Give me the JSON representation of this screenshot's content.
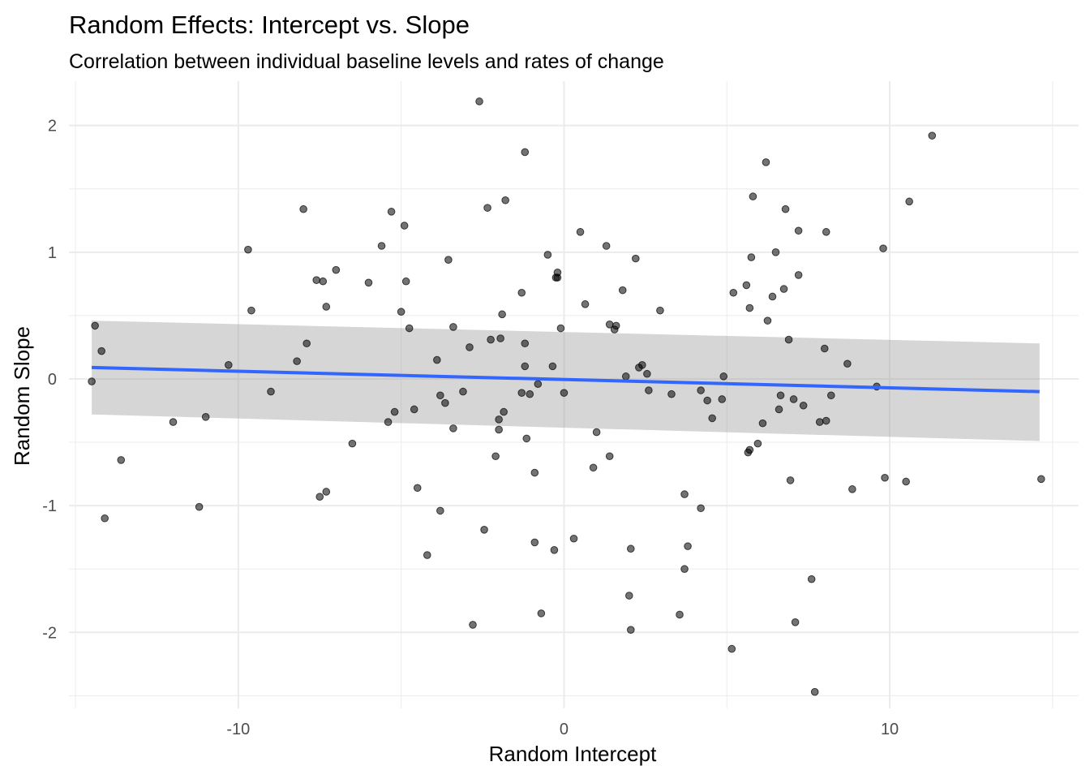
{
  "chart_data": {
    "type": "scatter",
    "title": "Random Effects: Intercept vs. Slope",
    "subtitle": "Correlation between individual baseline levels and rates of change",
    "xlabel": "Random Intercept",
    "ylabel": "Random Slope",
    "xlim": [
      -15.2,
      15.8
    ],
    "ylim": [
      -2.6,
      2.35
    ],
    "x_ticks": [
      -10,
      0,
      10
    ],
    "x_tick_labels": [
      "-10",
      "0",
      "10"
    ],
    "y_ticks": [
      -2,
      -1,
      0,
      1,
      2
    ],
    "y_tick_labels": [
      "-2",
      "-1",
      "0",
      "1",
      "2"
    ],
    "grid": true,
    "points": [
      [
        -14.4,
        0.42
      ],
      [
        -14.2,
        0.22
      ],
      [
        -14.5,
        -0.02
      ],
      [
        -13.6,
        -0.64
      ],
      [
        -14.1,
        -1.1
      ],
      [
        -12.0,
        -0.34
      ],
      [
        -11.2,
        -1.01
      ],
      [
        -11.0,
        -0.3
      ],
      [
        -10.3,
        0.11
      ],
      [
        -9.7,
        1.02
      ],
      [
        -9.6,
        0.54
      ],
      [
        -9.0,
        -0.1
      ],
      [
        -8.2,
        0.14
      ],
      [
        -8.0,
        1.34
      ],
      [
        -7.9,
        0.28
      ],
      [
        -7.6,
        0.78
      ],
      [
        -7.5,
        -0.93
      ],
      [
        -7.4,
        0.77
      ],
      [
        -7.3,
        -0.89
      ],
      [
        -7.3,
        0.57
      ],
      [
        -7.0,
        0.86
      ],
      [
        -6.5,
        -0.51
      ],
      [
        -6.0,
        0.76
      ],
      [
        -5.6,
        1.05
      ],
      [
        -5.4,
        -0.34
      ],
      [
        -5.3,
        1.32
      ],
      [
        -5.2,
        -0.26
      ],
      [
        -5.0,
        0.53
      ],
      [
        -4.9,
        1.21
      ],
      [
        -4.85,
        0.77
      ],
      [
        -4.75,
        0.4
      ],
      [
        -4.6,
        -0.24
      ],
      [
        -4.5,
        -0.86
      ],
      [
        -4.2,
        -1.39
      ],
      [
        -3.9,
        0.15
      ],
      [
        -3.8,
        -0.13
      ],
      [
        -3.8,
        -1.04
      ],
      [
        -3.65,
        -0.19
      ],
      [
        -3.55,
        0.94
      ],
      [
        -3.4,
        -0.39
      ],
      [
        -3.4,
        0.41
      ],
      [
        -3.1,
        -0.1
      ],
      [
        -2.9,
        0.25
      ],
      [
        -2.8,
        -1.94
      ],
      [
        -2.6,
        2.19
      ],
      [
        -2.45,
        -1.19
      ],
      [
        -2.35,
        1.35
      ],
      [
        -2.25,
        0.31
      ],
      [
        -2.1,
        -0.61
      ],
      [
        -2.0,
        -0.32
      ],
      [
        -2.0,
        -0.4
      ],
      [
        -1.95,
        0.32
      ],
      [
        -1.9,
        0.51
      ],
      [
        -1.85,
        -0.26
      ],
      [
        -1.8,
        1.41
      ],
      [
        -1.3,
        -0.11
      ],
      [
        -1.3,
        0.68
      ],
      [
        -1.2,
        0.28
      ],
      [
        -1.2,
        1.79
      ],
      [
        -1.2,
        0.1
      ],
      [
        -1.15,
        -0.47
      ],
      [
        -1.05,
        -0.12
      ],
      [
        -0.7,
        -1.85
      ],
      [
        -0.5,
        0.98
      ],
      [
        -0.2,
        0.84
      ],
      [
        -0.9,
        -0.74
      ],
      [
        -0.9,
        -1.29
      ],
      [
        -0.8,
        -0.04
      ],
      [
        -0.35,
        0.1
      ],
      [
        -0.3,
        -1.35
      ],
      [
        -0.25,
        0.8
      ],
      [
        -0.2,
        0.8
      ],
      [
        -0.1,
        0.4
      ],
      [
        0.0,
        -0.11
      ],
      [
        0.3,
        -1.26
      ],
      [
        0.5,
        1.16
      ],
      [
        0.65,
        0.59
      ],
      [
        0.9,
        -0.7
      ],
      [
        1.0,
        -0.42
      ],
      [
        1.3,
        1.05
      ],
      [
        1.4,
        -0.61
      ],
      [
        1.4,
        0.43
      ],
      [
        1.55,
        0.39
      ],
      [
        1.6,
        0.42
      ],
      [
        1.8,
        0.7
      ],
      [
        1.9,
        0.02
      ],
      [
        2.0,
        -1.71
      ],
      [
        2.05,
        -1.34
      ],
      [
        2.05,
        -1.98
      ],
      [
        2.2,
        0.95
      ],
      [
        2.3,
        0.09
      ],
      [
        2.4,
        0.11
      ],
      [
        2.55,
        0.04
      ],
      [
        2.6,
        -0.09
      ],
      [
        2.95,
        0.54
      ],
      [
        3.3,
        -0.12
      ],
      [
        3.55,
        -1.86
      ],
      [
        3.7,
        -0.91
      ],
      [
        3.7,
        -1.5
      ],
      [
        3.8,
        -1.32
      ],
      [
        4.2,
        -1.02
      ],
      [
        4.2,
        -0.09
      ],
      [
        4.4,
        -0.17
      ],
      [
        4.55,
        -0.31
      ],
      [
        4.85,
        -0.16
      ],
      [
        4.9,
        0.02
      ],
      [
        5.15,
        -2.13
      ],
      [
        5.2,
        0.68
      ],
      [
        5.6,
        0.74
      ],
      [
        5.65,
        -0.58
      ],
      [
        5.7,
        -0.56
      ],
      [
        5.7,
        0.56
      ],
      [
        5.75,
        0.96
      ],
      [
        5.8,
        1.44
      ],
      [
        5.95,
        -0.51
      ],
      [
        6.1,
        -0.35
      ],
      [
        6.2,
        1.71
      ],
      [
        6.25,
        0.46
      ],
      [
        6.4,
        0.65
      ],
      [
        6.5,
        1.0
      ],
      [
        6.6,
        -0.24
      ],
      [
        6.65,
        -0.13
      ],
      [
        6.75,
        0.71
      ],
      [
        6.8,
        1.34
      ],
      [
        6.9,
        0.31
      ],
      [
        6.95,
        -0.8
      ],
      [
        7.05,
        -0.16
      ],
      [
        7.1,
        -1.92
      ],
      [
        7.2,
        1.17
      ],
      [
        7.2,
        0.82
      ],
      [
        7.35,
        -0.21
      ],
      [
        7.6,
        -1.58
      ],
      [
        7.7,
        -2.47
      ],
      [
        7.85,
        -0.34
      ],
      [
        8.05,
        -0.33
      ],
      [
        8.0,
        0.24
      ],
      [
        8.05,
        1.16
      ],
      [
        8.2,
        -0.13
      ],
      [
        8.7,
        0.12
      ],
      [
        8.85,
        -0.87
      ],
      [
        9.6,
        -0.06
      ],
      [
        9.8,
        1.03
      ],
      [
        9.85,
        -0.78
      ],
      [
        10.5,
        -0.81
      ],
      [
        10.6,
        1.4
      ],
      [
        11.3,
        1.92
      ],
      [
        14.65,
        -0.79
      ]
    ],
    "fit_line": {
      "x": [
        -14.5,
        14.6
      ],
      "y": [
        0.09,
        -0.1
      ]
    },
    "confidence_band": {
      "x": [
        -14.5,
        14.6
      ],
      "upper": [
        0.46,
        0.28
      ],
      "lower": [
        -0.28,
        -0.49
      ]
    },
    "colors": {
      "points": "#000000",
      "fit_line": "#3366FF",
      "band": "#999999",
      "grid": "#ebebeb",
      "tick_text": "#4d4d4d"
    }
  }
}
